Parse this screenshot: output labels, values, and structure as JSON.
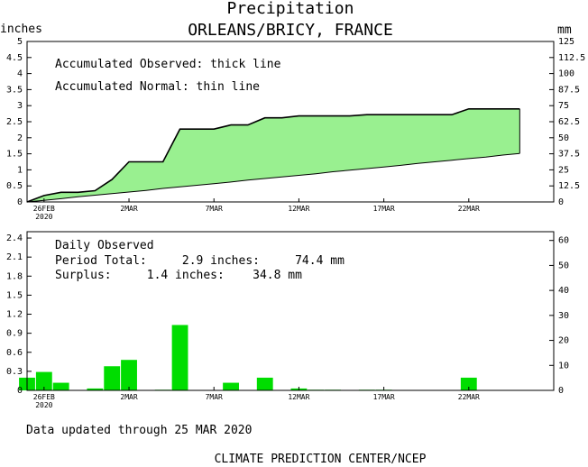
{
  "header": {
    "title": "Precipitation",
    "subtitle": "ORLEANS/BRICY, FRANCE",
    "left_unit": "inches",
    "right_unit": "mm"
  },
  "annotations": {
    "observed_note": "Accumulated Observed: thick line",
    "normal_note": "Accumulated Normal: thin line",
    "daily_heading": "Daily Observed",
    "period_total": "Period Total:     2.9 inches:     74.4 mm",
    "surplus": "Surplus:     1.4 inches:    34.8 mm"
  },
  "footer": {
    "updated": "Data updated through 25 MAR 2020",
    "credit": "CLIMATE PREDICTION CENTER/NCEP"
  },
  "colors": {
    "accumulated_fill": "#99f090",
    "daily_bar": "#00dd00",
    "axis": "#000000"
  },
  "chart_data": [
    {
      "type": "area",
      "title": "Precipitation",
      "subtitle": "ORLEANS/BRICY, FRANCE",
      "ylabel": "inches",
      "ylabel_right": "mm",
      "ylim": [
        0,
        5
      ],
      "ylim_right": [
        0,
        125
      ],
      "yticks": [
        "0",
        "0.5",
        "1",
        "1.5",
        "2",
        "2.5",
        "3",
        "3.5",
        "4",
        "4.5",
        "5"
      ],
      "yticks_right": [
        "0",
        "12.5",
        "25",
        "37.5",
        "50",
        "62.5",
        "75",
        "87.5",
        "100",
        "112.5",
        "125"
      ],
      "x_tick_labels": [
        "26FEB",
        "2MAR",
        "7MAR",
        "12MAR",
        "17MAR",
        "22MAR"
      ],
      "x_year_label": "2020",
      "x_tick_days": [
        0,
        5,
        10,
        15,
        20,
        25
      ],
      "x_range_days": [
        -1,
        30
      ],
      "days": [
        -1,
        0,
        1,
        2,
        3,
        4,
        5,
        6,
        7,
        8,
        9,
        10,
        11,
        12,
        13,
        14,
        15,
        16,
        17,
        18,
        19,
        20,
        21,
        22,
        23,
        24,
        25,
        26,
        27,
        28
      ],
      "series": [
        {
          "name": "Accumulated Observed",
          "values": [
            0,
            0.2,
            0.3,
            0.3,
            0.35,
            0.7,
            1.25,
            1.25,
            1.25,
            2.27,
            2.27,
            2.27,
            2.4,
            2.4,
            2.62,
            2.62,
            2.68,
            2.68,
            2.68,
            2.68,
            2.72,
            2.72,
            2.72,
            2.72,
            2.72,
            2.72,
            2.9,
            2.9,
            2.9,
            2.9
          ]
        },
        {
          "name": "Accumulated Normal",
          "values": [
            0,
            0.05,
            0.1,
            0.16,
            0.21,
            0.26,
            0.31,
            0.36,
            0.42,
            0.47,
            0.52,
            0.57,
            0.62,
            0.68,
            0.73,
            0.78,
            0.83,
            0.88,
            0.94,
            0.99,
            1.04,
            1.09,
            1.14,
            1.2,
            1.25,
            1.3,
            1.35,
            1.4,
            1.46,
            1.51
          ]
        }
      ],
      "grid": false,
      "legend": "none"
    },
    {
      "type": "bar",
      "title": "Daily Observed",
      "ylim": [
        0,
        2.5
      ],
      "ylim_right": [
        0,
        63.5
      ],
      "yticks": [
        "0",
        "0.3",
        "0.6",
        "0.9",
        "1.2",
        "1.5",
        "1.8",
        "2.1",
        "2.4"
      ],
      "yticks_right": [
        "0",
        "10",
        "20",
        "30",
        "40",
        "50",
        "60"
      ],
      "x_tick_labels": [
        "26FEB",
        "2MAR",
        "7MAR",
        "12MAR",
        "17MAR",
        "22MAR"
      ],
      "x_year_label": "2020",
      "days": [
        -1,
        0,
        1,
        2,
        3,
        4,
        5,
        6,
        7,
        8,
        9,
        10,
        11,
        12,
        13,
        14,
        15,
        16,
        17,
        18,
        19,
        20,
        21,
        22,
        23,
        24,
        25,
        26,
        27,
        28
      ],
      "values": [
        0.2,
        0.29,
        0.12,
        0,
        0.03,
        0.38,
        0.48,
        0,
        0.01,
        1.03,
        0,
        0,
        0.12,
        0,
        0.2,
        0,
        0.03,
        0.01,
        0.01,
        0,
        0.01,
        0.01,
        0,
        0,
        0,
        0,
        0.2,
        0,
        0,
        0
      ],
      "grid": false,
      "legend": "none"
    }
  ]
}
